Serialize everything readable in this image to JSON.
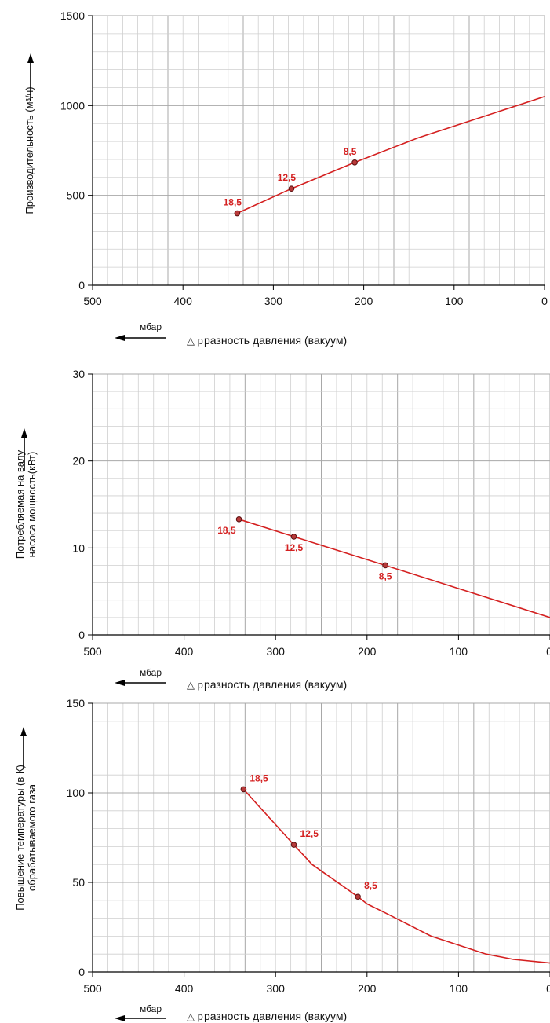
{
  "chart_data": [
    {
      "type": "line",
      "xlabel_symbol": "△ p",
      "xlabel": "разность давления (вакуум)",
      "x_unit": "мбар",
      "ylabel": [
        "Производительность (м³/ч)"
      ],
      "xlim": [
        500,
        0
      ],
      "ylim": [
        0,
        1500
      ],
      "x_ticks": [
        500,
        400,
        300,
        200,
        100,
        0
      ],
      "y_ticks": [
        0,
        500,
        1000,
        1500
      ],
      "x_tick_labels": [
        "500",
        "400",
        "300",
        "200",
        "100",
        "0"
      ],
      "y_tick_labels": [
        "0",
        "500",
        "1000",
        "1500"
      ],
      "grid": true,
      "line_color": "#d42020",
      "series": [
        {
          "x": [
            340,
            280,
            210,
            140,
            0
          ],
          "y": [
            400,
            537,
            683,
            820,
            1050
          ]
        }
      ],
      "markers": [
        {
          "x": 340,
          "y": 400,
          "label": "18,5"
        },
        {
          "x": 280,
          "y": 537,
          "label": "12,5"
        },
        {
          "x": 210,
          "y": 683,
          "label": "8,5"
        }
      ]
    },
    {
      "type": "line",
      "xlabel_symbol": "△ p",
      "xlabel": "разность давления (вакуум)",
      "x_unit": "мбар",
      "ylabel": [
        "Потребляемая на валу",
        "насоса мощность(кВт)"
      ],
      "xlim": [
        500,
        0
      ],
      "ylim": [
        0,
        30
      ],
      "x_ticks": [
        500,
        400,
        300,
        200,
        100,
        0
      ],
      "y_ticks": [
        0,
        10,
        20,
        30
      ],
      "x_tick_labels": [
        "500",
        "400",
        "300",
        "200",
        "100",
        "0"
      ],
      "y_tick_labels": [
        "0",
        "10",
        "20",
        "30"
      ],
      "grid": true,
      "line_color": "#d42020",
      "series": [
        {
          "x": [
            340,
            280,
            180,
            0
          ],
          "y": [
            13.3,
            11.3,
            8.0,
            2.0
          ]
        }
      ],
      "markers": [
        {
          "x": 340,
          "y": 13.3,
          "label": "18,5"
        },
        {
          "x": 280,
          "y": 11.3,
          "label": "12,5"
        },
        {
          "x": 180,
          "y": 8.0,
          "label": "8,5"
        }
      ]
    },
    {
      "type": "line",
      "xlabel_symbol": "△ p",
      "xlabel": "разность давления (вакуум)",
      "x_unit": "мбар",
      "ylabel": [
        "Повышение температуры (в К)",
        "обрабатываемого газа"
      ],
      "xlim": [
        500,
        0
      ],
      "ylim": [
        0,
        150
      ],
      "x_ticks": [
        500,
        400,
        300,
        200,
        100,
        0
      ],
      "y_ticks": [
        0,
        50,
        100,
        150
      ],
      "x_tick_labels": [
        "500",
        "400",
        "300",
        "200",
        "100",
        "0"
      ],
      "y_tick_labels": [
        "0",
        "50",
        "100",
        "150"
      ],
      "grid": true,
      "line_color": "#d42020",
      "series": [
        {
          "x": [
            335,
            280,
            260,
            210,
            200,
            180,
            130,
            70,
            40,
            0
          ],
          "y": [
            102,
            71,
            60,
            42,
            38,
            33,
            20,
            10,
            7,
            5
          ]
        }
      ],
      "markers": [
        {
          "x": 335,
          "y": 102,
          "label": "18,5"
        },
        {
          "x": 280,
          "y": 71,
          "label": "12,5"
        },
        {
          "x": 210,
          "y": 42,
          "label": "8,5"
        }
      ]
    }
  ]
}
